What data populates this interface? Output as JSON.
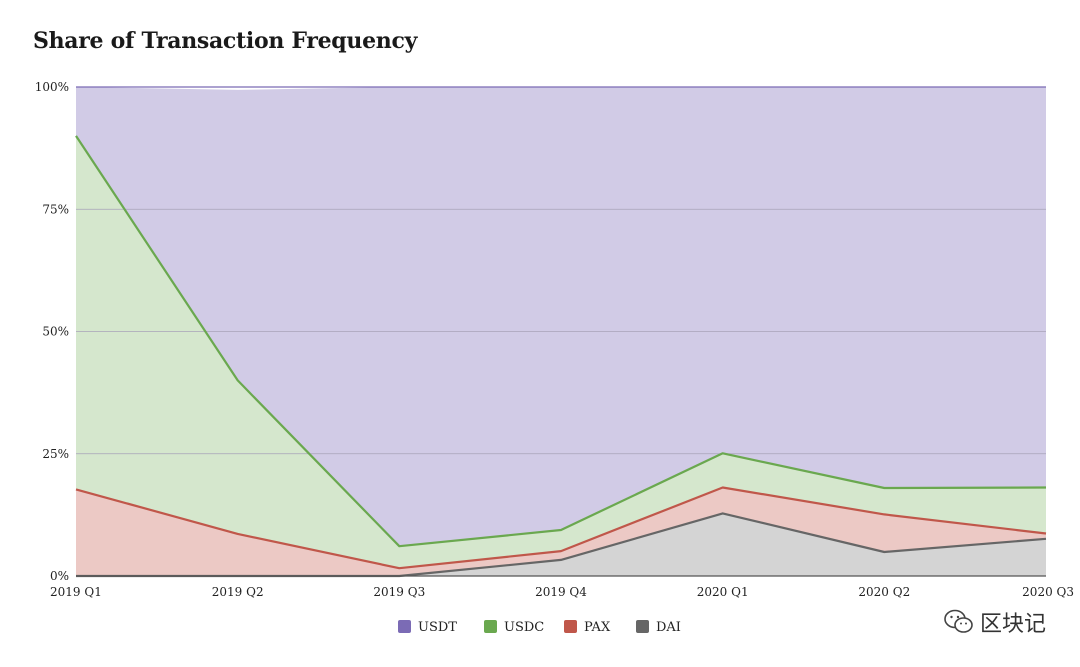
{
  "chart_data": {
    "type": "area",
    "stacked": true,
    "title": "Share of Transaction Frequency",
    "categories": [
      "2019 Q1",
      "2019 Q2",
      "2019 Q3",
      "2019 Q4",
      "2020 Q1",
      "2020 Q2",
      "2020 Q3"
    ],
    "yticks": [
      "0%",
      "25%",
      "50%",
      "75%",
      "100%"
    ],
    "ylim": [
      0,
      100
    ],
    "grid": true,
    "legend_position": "bottom-center",
    "series": [
      {
        "name": "DAI",
        "color": "#666666",
        "fill": "#d4d4d4",
        "values": [
          0,
          0,
          0,
          3.3,
          12.8,
          4.9,
          7.6
        ]
      },
      {
        "name": "PAX",
        "color": "#c0574a",
        "fill": "#ecc9c5",
        "values": [
          17.7,
          8.6,
          1.6,
          1.8,
          5.3,
          7.7,
          1.1
        ]
      },
      {
        "name": "USDC",
        "color": "#6aa84f",
        "fill": "#d5e7cd",
        "values": [
          72.3,
          31.4,
          4.5,
          4.3,
          7.0,
          5.4,
          9.4
        ]
      },
      {
        "name": "USDT",
        "color": "#7b6bb5",
        "fill": "#d1cbe6",
        "values": [
          10.0,
          59.4,
          93.9,
          90.6,
          74.9,
          82.0,
          81.9
        ]
      }
    ],
    "legend_order": [
      "USDT",
      "USDC",
      "PAX",
      "DAI"
    ]
  },
  "watermark": {
    "text": "区块记",
    "icon": "wechat-icon"
  }
}
